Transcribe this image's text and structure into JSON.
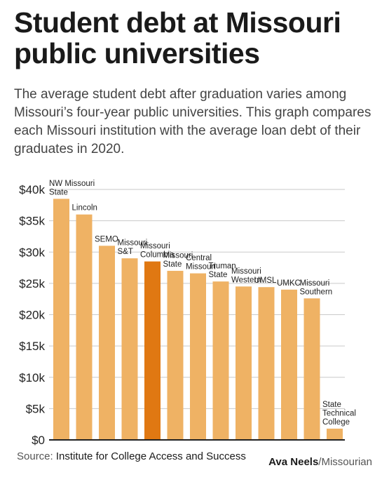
{
  "title": "Student debt at Missouri public universities",
  "subtitle": "The average student debt after graduation varies among Missouri’s four-year public universities. This graph compares each Missouri institution with the average loan debt of their graduates in 2020.",
  "source_prefix": "Source: ",
  "source_name": "Institute for College Access and Success",
  "credit_name": "Ava Neels",
  "credit_org": "/Missourian",
  "colors": {
    "bar": "#efb264",
    "highlight": "#e07812",
    "grid": "#c9c9c9",
    "axis": "#222222"
  },
  "chart_data": {
    "type": "bar",
    "title": "",
    "xlabel": "",
    "ylabel": "",
    "ylim": [
      0,
      40000
    ],
    "yticks": [
      0,
      5000,
      10000,
      15000,
      20000,
      25000,
      30000,
      35000,
      40000
    ],
    "ytick_labels": [
      "$0",
      "$5k",
      "$10k",
      "$15k",
      "$20k",
      "$25k",
      "$30k",
      "$35k",
      "$40k"
    ],
    "grid": true,
    "highlight": "Missouri Columbia",
    "categories": [
      "NW Missouri State",
      "Lincoln",
      "SEMO",
      "Missouri S&T",
      "Missouri Columbia",
      "Missouri State",
      "Central Missouri",
      "Truman State",
      "Missouri Western",
      "UMSL",
      "UMKC",
      "Missouri Southern",
      "State Technical College"
    ],
    "label_lines": [
      [
        "NW Missouri",
        "State"
      ],
      [
        "Lincoln"
      ],
      [
        "SEMO"
      ],
      [
        "Missouri",
        "S&T"
      ],
      [
        "Missouri",
        "Columbia"
      ],
      [
        "Missouri",
        "State"
      ],
      [
        "Central",
        "Missouri"
      ],
      [
        "Truman",
        "State"
      ],
      [
        "Missouri",
        "Western"
      ],
      [
        "UMSL"
      ],
      [
        "UMKC"
      ],
      [
        "Missouri",
        "Southern"
      ],
      [
        "State",
        "Technical",
        "College"
      ]
    ],
    "values": [
      38500,
      36000,
      31000,
      29000,
      28500,
      27000,
      26600,
      25300,
      24500,
      24400,
      24000,
      22600,
      1800
    ]
  }
}
